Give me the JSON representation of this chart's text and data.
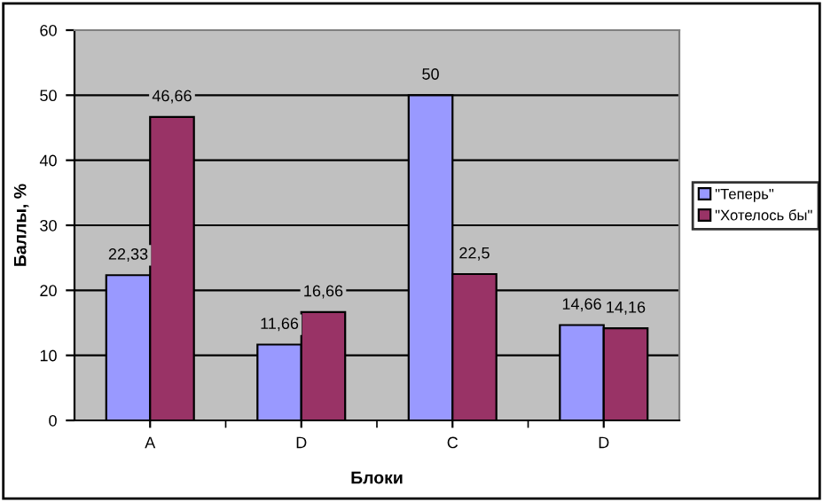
{
  "chart_data": {
    "type": "bar",
    "xlabel": "Блоки",
    "ylabel": "Баллы, %",
    "categories": [
      "A",
      "D",
      "C",
      "D"
    ],
    "series": [
      {
        "name": "\"Теперь\"",
        "color": "#9999ff",
        "values": [
          22.33,
          11.66,
          50,
          14.66
        ],
        "value_labels": [
          "22,33",
          "11,66",
          "50",
          "14,66"
        ]
      },
      {
        "name": "\"Хотелось бы\"",
        "color": "#993366",
        "values": [
          46.66,
          16.66,
          22.5,
          14.16
        ],
        "value_labels": [
          "46,66",
          "16,66",
          "22,5",
          "14,16"
        ]
      }
    ],
    "ylim": [
      0,
      60
    ],
    "yticks": [
      0,
      10,
      20,
      30,
      40,
      50,
      60
    ],
    "grid": "y",
    "legend": "right"
  }
}
